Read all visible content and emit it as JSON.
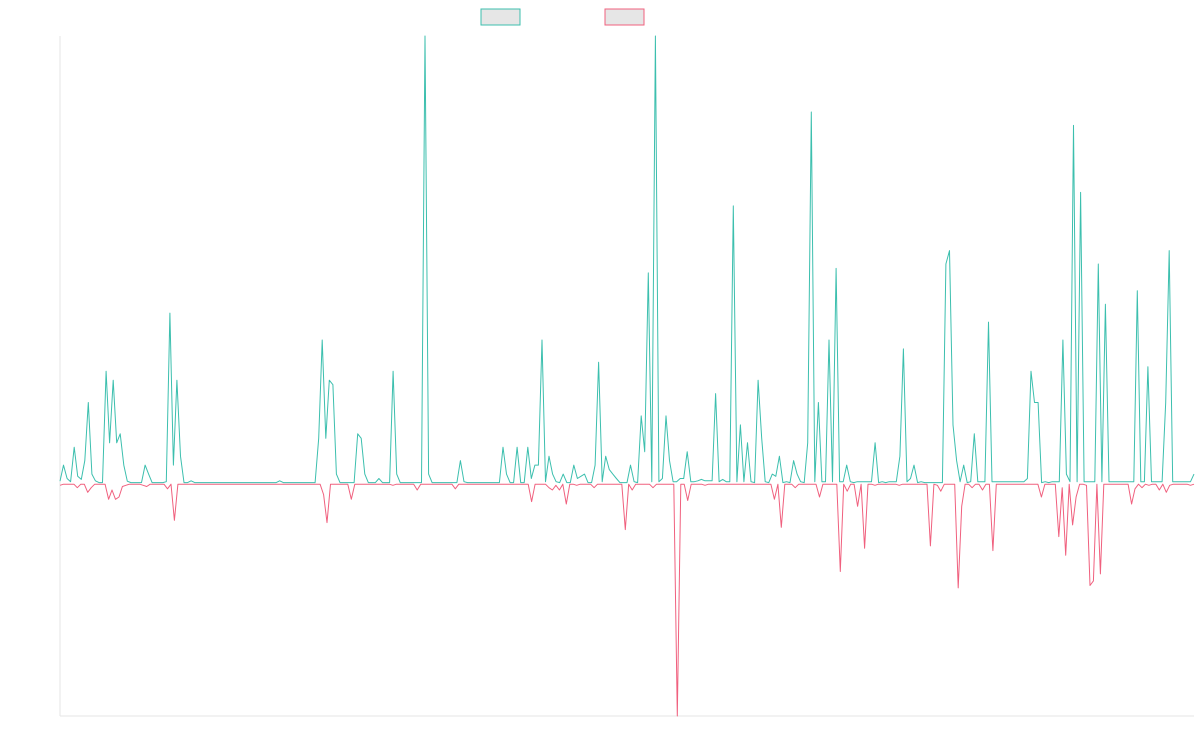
{
  "chart_data": {
    "type": "line",
    "title": "",
    "xlabel": "",
    "ylabel": "",
    "grid": false,
    "legend_position": "top-center",
    "y_axis_visible": false,
    "ylim": [
      -100,
      100
    ],
    "series": [
      {
        "color": "#3cbfae",
        "values": [
          0.4,
          4,
          1,
          0.3,
          8,
          1.5,
          0.8,
          5,
          18,
          2,
          0.5,
          0.1,
          0.1,
          25,
          9,
          23,
          9,
          11,
          4,
          0.4,
          0.1,
          0.1,
          0.1,
          0.1,
          4,
          2,
          0.1,
          0.1,
          0.1,
          0.1,
          0.3,
          38,
          4,
          23,
          6,
          0.1,
          0.1,
          0.5,
          0.1,
          0.1,
          0.1,
          0.1,
          0.1,
          0.1,
          0.1,
          0.1,
          0.1,
          0.1,
          0.1,
          0.1,
          0.1,
          0.1,
          0.1,
          0.1,
          0.1,
          0.1,
          0.1,
          0.1,
          0.1,
          0.1,
          0.1,
          0.5,
          0.1,
          0.1,
          0.1,
          0.1,
          0.1,
          0.1,
          0.1,
          0.1,
          0.1,
          0.1,
          10,
          32,
          10,
          23,
          22,
          2,
          0.1,
          0.1,
          0.1,
          0.1,
          0.1,
          11,
          10,
          2,
          0.1,
          0.1,
          0.1,
          1,
          0.1,
          0.1,
          0.1,
          25,
          2,
          0.1,
          0.1,
          0.1,
          0.1,
          0.1,
          0.1,
          0.1,
          0.1,
          0.1,
          0.1,
          0.1,
          0.1,
          0.5,
          0.1,
          0.1,
          0.1,
          0.1,
          0.1,
          0.1,
          0.1,
          0.1,
          0.1,
          0.1,
          0.1,
          0.1,
          0.1,
          0.1,
          0.1,
          0.1,
          0.1,
          0.1,
          0.1,
          0.1,
          0.1,
          0.1,
          0.1,
          0.1,
          0.1,
          0.1,
          0.1,
          0.1,
          0.1,
          0.1,
          0.1,
          0.1,
          0.1,
          0.1,
          0.1,
          0.1,
          0.1,
          0.1,
          0.1,
          0.1,
          0.1,
          0.1,
          0.1
        ],
        "values_note": "",
        "values_compact": ""
      },
      {
        "color": "#f0607e",
        "values": []
      }
    ],
    "n_points": 272
  },
  "legend": {
    "items": [
      {
        "label": "",
        "color": "#3cbfae"
      },
      {
        "label": "",
        "color": "#f0607e"
      }
    ]
  },
  "series_a": [
    0.4,
    4,
    1,
    0.3,
    8,
    1.5,
    0.8,
    5,
    18,
    2,
    0.5,
    0.1,
    0.1,
    25,
    9,
    23,
    9,
    11,
    4,
    0.4,
    0.1,
    0.1,
    0.1,
    0.1,
    4,
    2,
    0.1,
    0.1,
    0.1,
    0.1,
    0.3,
    38,
    4,
    23,
    6,
    0.1,
    0.1,
    0.5,
    0.1,
    0.1,
    0.1,
    0.1,
    0.1,
    0.1,
    0.1,
    0.1,
    0.1,
    0.1,
    0.1,
    0.1,
    0.1,
    0.1,
    0.1,
    0.1,
    0.1,
    0.1,
    0.1,
    0.1,
    0.1,
    0.1,
    0.1,
    0.1,
    0.5,
    0.1,
    0.1,
    0.1,
    0.1,
    0.1,
    0.1,
    0.1,
    0.1,
    0.1,
    0.1,
    10,
    32,
    10,
    23,
    22,
    2,
    0.1,
    0.1,
    0.1,
    0.1,
    0.1,
    11,
    10,
    2,
    0.1,
    0.1,
    0.1,
    1,
    0.1,
    0.1,
    0.1,
    25,
    2,
    0.1,
    0.1,
    0.1,
    0.1,
    0.1,
    0.1,
    0.1,
    100,
    2,
    0.1,
    0.1,
    0.1,
    0.1,
    0.1,
    0.1,
    0.1,
    0.1,
    5,
    0.3,
    0.1,
    0.1,
    0.1,
    0.1,
    0.1,
    0.1,
    0.1,
    0.1,
    0.1,
    0.1,
    8,
    2,
    0.1,
    0.1,
    8,
    0.1,
    0.1,
    8,
    1,
    4,
    4,
    32,
    0.3,
    6,
    2,
    0.3,
    0.1,
    2,
    0.1,
    0.1,
    4,
    1,
    1.5,
    2,
    0.1,
    0.1,
    4,
    27,
    0.3,
    6,
    3,
    2,
    1,
    0.1,
    0.1,
    0.1,
    4,
    0.3,
    0.1,
    15,
    7,
    47,
    0.3,
    100,
    0.3,
    1,
    15,
    5,
    0.3,
    0.3,
    1,
    1,
    7,
    0.3,
    0.3,
    0.5,
    0.8,
    0.5,
    0.5,
    0.5,
    20,
    0.3,
    0.8,
    0.3,
    0.3,
    62,
    0.3,
    13,
    0.3,
    9,
    0.3,
    0.1,
    23,
    10,
    0.3,
    0.1,
    2,
    1.5,
    6,
    0.1,
    0.3,
    0.1,
    5,
    2,
    0.3,
    0.1,
    9,
    83,
    0.3,
    18,
    0.3,
    0.3,
    32,
    0.3,
    48,
    0.3,
    0.3,
    4,
    0.3,
    0.1,
    0.3,
    0.3,
    0.3,
    0.3,
    0.3,
    9,
    0.1,
    0.3,
    0.1,
    0.3,
    0.3,
    0.3,
    6,
    30,
    0.3,
    1,
    4,
    0.1,
    0.3,
    0.1,
    0.1,
    0.1,
    0.1,
    0.1,
    0.1,
    49,
    52,
    13,
    5,
    0.3,
    4,
    0.1,
    0.3,
    11,
    0.3,
    0.3,
    0.3,
    36,
    0.3,
    0.3,
    0.3,
    0.3,
    0.3,
    0.3,
    0.3,
    0.3,
    0.3,
    0.3,
    1,
    25,
    18,
    18,
    0.1,
    0.3,
    0.1,
    0.3,
    0.3,
    0.3,
    32,
    2,
    0.3,
    80,
    0.3,
    65,
    0.3,
    0.3,
    0.3,
    0.3,
    49,
    0.3,
    40,
    0.3,
    0.3,
    0.3,
    0.3,
    0.3,
    0.3,
    0.3,
    0.3,
    43,
    0.3,
    0.3,
    26,
    0.3,
    0.3,
    0.3,
    0.3,
    18,
    52,
    0.3,
    0.3,
    0.3,
    0.3,
    0.3,
    0.3,
    2
  ],
  "series_b": [
    -1,
    -0.5,
    -0.5,
    -0.5,
    -0.5,
    -2,
    -0.5,
    -0.5,
    -4,
    -2,
    -0.5,
    -0.5,
    -0.5,
    -0.5,
    -7,
    -3,
    -7,
    -6,
    -1.5,
    -1,
    -0.5,
    -0.5,
    -0.5,
    -0.5,
    -1,
    -1.5,
    -0.5,
    -0.5,
    -0.5,
    -0.5,
    -0.5,
    -2.5,
    -0.5,
    -16,
    -0.5,
    -0.5,
    -0.5,
    -0.5,
    -0.5,
    -0.5,
    -0.5,
    -0.5,
    -0.5,
    -0.5,
    -0.5,
    -0.5,
    -0.5,
    -0.5,
    -0.5,
    -0.5,
    -0.5,
    -0.5,
    -0.5,
    -0.5,
    -0.5,
    -0.5,
    -0.5,
    -0.5,
    -0.5,
    -0.5,
    -0.5,
    -0.5,
    -0.5,
    -0.5,
    -0.5,
    -0.5,
    -0.5,
    -0.5,
    -0.5,
    -0.5,
    -0.5,
    -0.5,
    -0.5,
    -0.5,
    -0.5,
    -0.5,
    -5,
    -17,
    -0.5,
    -0.5,
    -0.5,
    -0.5,
    -0.5,
    -0.5,
    -7,
    -0.5,
    -0.5,
    -0.5,
    -0.5,
    -0.5,
    -0.5,
    -0.5,
    -0.5,
    -0.5,
    -0.5,
    -0.5,
    -1,
    -0.5,
    -0.5,
    -0.5,
    -0.5,
    -0.5,
    -0.5,
    -3,
    -0.5,
    -0.5,
    -0.5,
    -0.5,
    -0.5,
    -0.5,
    -0.5,
    -0.5,
    -0.5,
    -0.5,
    -2.5,
    -0.5,
    -0.5,
    -0.5,
    -0.5,
    -0.5,
    -0.5,
    -0.5,
    -0.5,
    -0.5,
    -0.5,
    -0.5,
    -0.5,
    -0.5,
    -0.5,
    -0.5,
    -0.5,
    -0.5,
    -0.5,
    -0.5,
    -0.5,
    -0.5,
    -8,
    -0.5,
    -0.5,
    -0.5,
    -0.5,
    -2,
    -3,
    -1,
    -3,
    -0.5,
    -9,
    -0.5,
    -0.5,
    -1,
    -0.5,
    -0.5,
    -0.5,
    -0.5,
    -2,
    -0.5,
    -0.5,
    -0.5,
    -0.5,
    -0.5,
    -0.5,
    -0.5,
    -0.5,
    -20,
    -0.5,
    -3,
    -0.5,
    -0.5,
    -0.5,
    -0.5,
    -0.5,
    -2,
    -0.5,
    -0.5,
    -0.5,
    -0.5,
    -0.5,
    -0.5,
    -100,
    -0.5,
    -0.5,
    -7.5,
    -0.5,
    -0.5,
    -0.5,
    -0.5,
    -1,
    -0.5,
    -0.5,
    -0.5,
    -0.5,
    -0.5,
    -0.5,
    -0.5,
    -0.5,
    -0.5,
    -0.5,
    -0.5,
    -0.5,
    -0.5,
    -0.5,
    -0.5,
    -0.5,
    -0.5,
    -0.5,
    -0.5,
    -7,
    -0.5,
    -19,
    -0.5,
    -0.5,
    -0.5,
    -2,
    -0.5,
    -0.5,
    -0.5,
    -0.5,
    -0.5,
    -0.5,
    -6,
    -0.5,
    -0.5,
    -0.5,
    -0.5,
    -0.5,
    -38,
    -0.5,
    -3.5,
    -0.5,
    -0.5,
    -10,
    -0.5,
    -28,
    -0.5,
    -0.5,
    -1,
    -0.5,
    -0.5,
    -0.5,
    -0.5,
    -0.5,
    -0.5,
    -1,
    -0.5,
    -0.5,
    -0.5,
    -0.5,
    -0.5,
    -0.5,
    -0.5,
    -0.5,
    -27,
    -0.5,
    -1,
    -3.5,
    -0.5,
    -0.5,
    -0.5,
    -0.5,
    -45,
    -10,
    -0.5,
    -0.5,
    -2,
    -0.5,
    -0.5,
    -3,
    -0.5,
    -0.5,
    -29,
    -0.5,
    -0.5,
    -0.5,
    -0.5,
    -0.5,
    -0.5,
    -0.5,
    -0.5,
    -0.5,
    -0.5,
    -0.5,
    -0.5,
    -0.5,
    -6,
    -0.5,
    -0.5,
    -0.5,
    -0.5,
    -23,
    -2,
    -31,
    -0.5,
    -18,
    -6,
    -0.5,
    -0.5,
    -1,
    -44,
    -42,
    -0.5,
    -39,
    -0.5,
    -0.5,
    -0.5,
    -0.5,
    -0.5,
    -0.5,
    -0.5,
    -0.5,
    -9,
    -2.5,
    -0.5,
    -2,
    -0.5,
    -1,
    -0.5,
    -0.5,
    -3,
    -0.5,
    -4,
    -1,
    -0.5,
    -0.5,
    -0.5,
    -0.5,
    -0.5,
    -1,
    -0.5
  ]
}
